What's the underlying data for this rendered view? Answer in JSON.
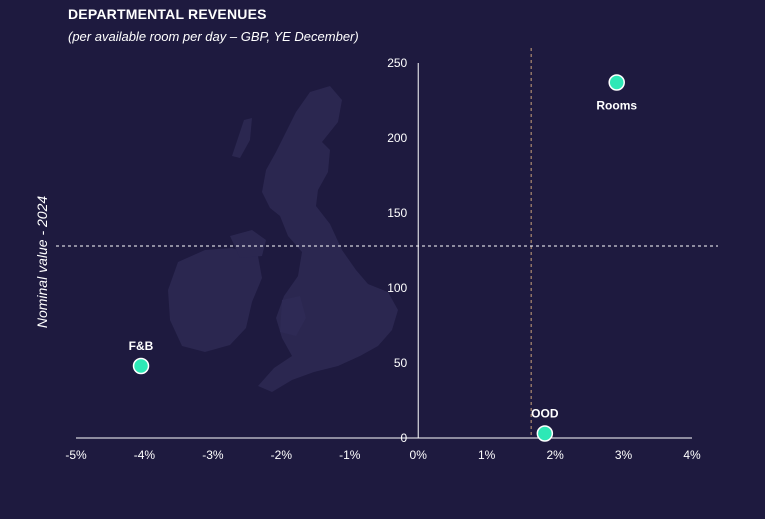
{
  "chart_data": {
    "type": "scatter",
    "title": "DEPARTMENTAL REVENUES",
    "subtitle": "(per available room per day – GBP, YE December)",
    "ylabel": "Nominal value - 2024",
    "xlabel": "",
    "xlim": [
      -5,
      4
    ],
    "ylim": [
      0,
      250
    ],
    "xticks": [
      "-5%",
      "-4%",
      "-3%",
      "-2%",
      "-1%",
      "0%",
      "1%",
      "2%",
      "3%",
      "4%"
    ],
    "yticks": [
      "0",
      "50",
      "100",
      "150",
      "200",
      "250"
    ],
    "points": [
      {
        "label": "Rooms",
        "x": 2.9,
        "y": 237
      },
      {
        "label": "F&B",
        "x": -4.05,
        "y": 48
      },
      {
        "label": "OOD",
        "x": 1.85,
        "y": 3
      }
    ],
    "reference_lines": {
      "x": 1.65,
      "y": 128
    },
    "grid": false,
    "colors": {
      "background": "#1e1a3f",
      "point": "#2ee8b6",
      "axis": "#ffffff",
      "vline": "#c9a27a",
      "hline": "#ffffff",
      "map": "#2b2750"
    }
  }
}
